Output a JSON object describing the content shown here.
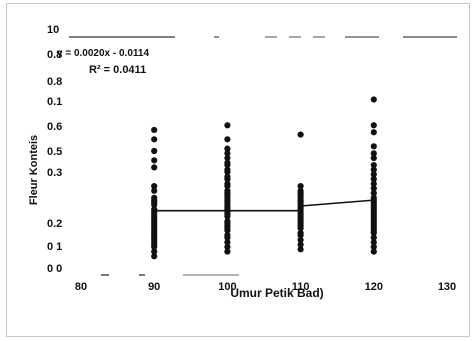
{
  "chart_data": {
    "type": "scatter",
    "xlabel": "Umur Petik Bad)",
    "ylabel": "Fleur Konteis",
    "x_ticks": [
      "80",
      "90",
      "100",
      "110",
      "120",
      "130"
    ],
    "y_ticks": [
      "10",
      "0.8",
      "0.8",
      "0.1",
      "0.6",
      "0.5",
      "0.3",
      "0.2",
      "0 1",
      "0 0"
    ],
    "xlim": [
      80,
      130
    ],
    "trend_label": "y = 0.0020x - 0.0114",
    "r2_label": "R² = 0.0411",
    "series": [
      {
        "x": [
          90,
          90,
          90,
          90,
          90,
          90,
          90,
          90,
          90,
          90,
          90,
          90,
          90,
          90,
          90,
          90,
          90,
          90,
          90,
          90,
          90,
          90,
          90,
          90,
          90,
          90,
          90,
          90,
          90,
          90,
          100,
          100,
          100,
          100,
          100,
          100,
          100,
          100,
          100,
          100,
          100,
          100,
          100,
          100,
          100,
          100,
          100,
          100,
          100,
          100,
          100,
          100,
          100,
          100,
          100,
          100,
          100,
          100,
          100,
          100,
          100,
          100,
          100,
          100,
          100,
          110,
          110,
          110,
          110,
          110,
          110,
          110,
          110,
          110,
          110,
          110,
          110,
          110,
          110,
          110,
          110,
          110,
          110,
          110,
          110,
          110,
          110,
          110,
          110,
          120,
          120,
          120,
          120,
          120,
          120,
          120,
          120,
          120,
          120,
          120,
          120,
          120,
          120,
          120,
          120,
          120,
          120,
          120,
          120,
          120,
          120,
          120,
          120,
          120,
          120,
          120,
          120,
          120,
          120,
          120,
          120,
          120
        ],
        "y": [
          0.05,
          0.07,
          0.09,
          0.1,
          0.11,
          0.12,
          0.13,
          0.14,
          0.15,
          0.16,
          0.17,
          0.18,
          0.19,
          0.2,
          0.21,
          0.22,
          0.23,
          0.24,
          0.25,
          0.27,
          0.28,
          0.29,
          0.3,
          0.33,
          0.35,
          0.43,
          0.46,
          0.5,
          0.55,
          0.59,
          0.07,
          0.09,
          0.11,
          0.13,
          0.14,
          0.16,
          0.17,
          0.18,
          0.19,
          0.2,
          0.22,
          0.23,
          0.24,
          0.25,
          0.26,
          0.27,
          0.28,
          0.29,
          0.3,
          0.31,
          0.32,
          0.33,
          0.35,
          0.36,
          0.38,
          0.39,
          0.41,
          0.42,
          0.44,
          0.45,
          0.47,
          0.49,
          0.51,
          0.55,
          0.61,
          0.08,
          0.1,
          0.12,
          0.14,
          0.15,
          0.17,
          0.18,
          0.19,
          0.2,
          0.21,
          0.22,
          0.23,
          0.24,
          0.25,
          0.26,
          0.27,
          0.28,
          0.29,
          0.3,
          0.31,
          0.32,
          0.33,
          0.35,
          0.57,
          0.07,
          0.09,
          0.11,
          0.13,
          0.15,
          0.16,
          0.17,
          0.18,
          0.19,
          0.2,
          0.21,
          0.22,
          0.23,
          0.24,
          0.25,
          0.26,
          0.27,
          0.28,
          0.29,
          0.3,
          0.32,
          0.34,
          0.36,
          0.38,
          0.4,
          0.42,
          0.44,
          0.47,
          0.49,
          0.52,
          0.58,
          0.61,
          0.72
        ]
      }
    ],
    "trend_segments": [
      {
        "x": [
          90,
          110
        ],
        "y": [
          0.245,
          0.245
        ]
      },
      {
        "x": [
          110,
          120
        ],
        "y": [
          0.265,
          0.29
        ]
      }
    ]
  }
}
